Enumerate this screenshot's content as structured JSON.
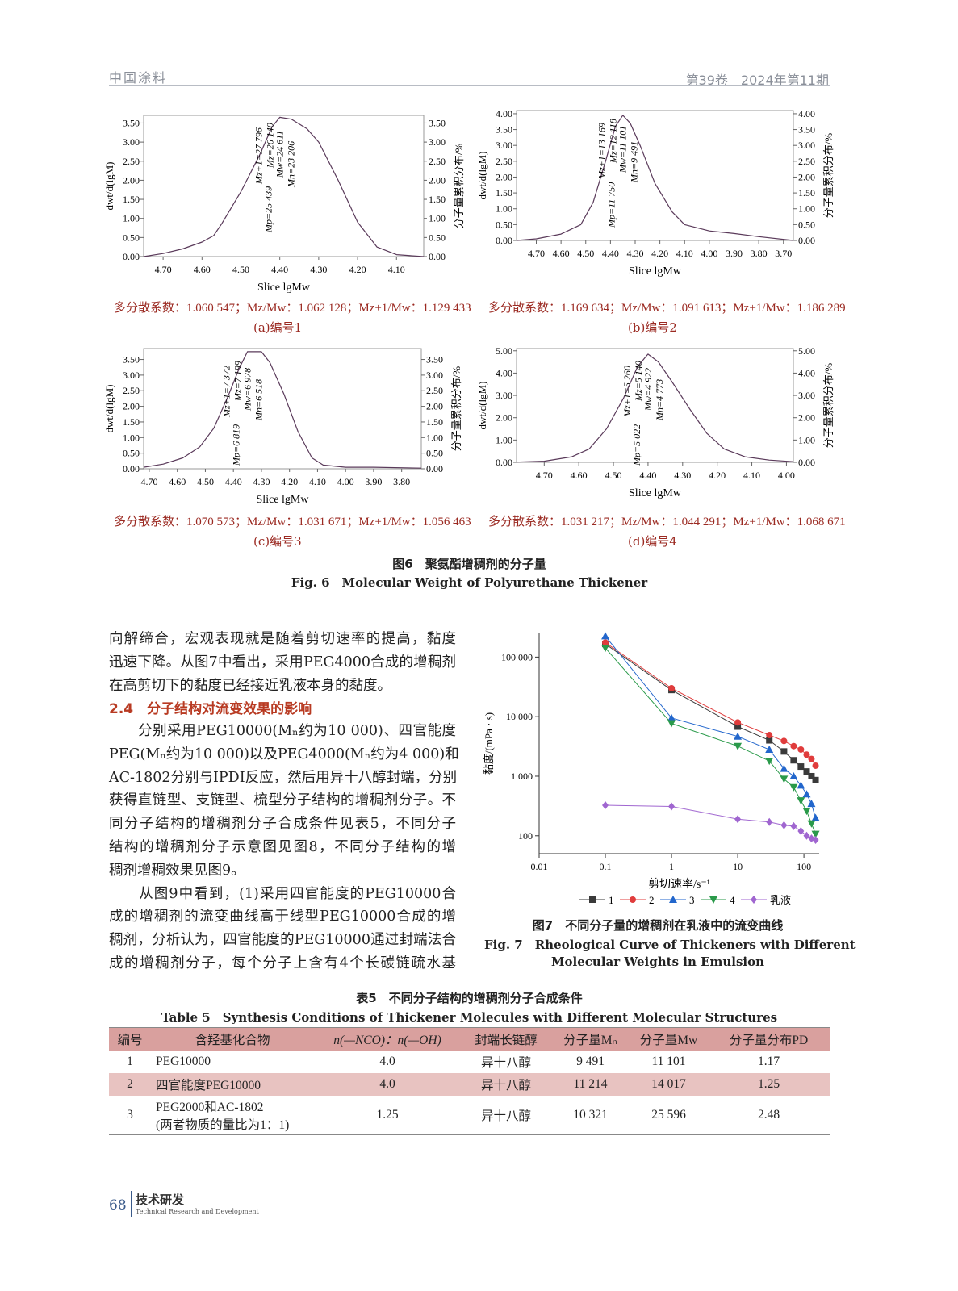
{
  "header": {
    "journal": "中国涂料",
    "issue": "第39卷　2024年第11期"
  },
  "fig6": {
    "caption_cn": "图6　聚氨酯增稠剂的分子量",
    "caption_en": "Fig. 6　Molecular Weight of Polyurethane Thickener",
    "ylabel_left": "dwt/d(lgM)",
    "ylabel_right": "分子量累积分布/%",
    "xlabel": "Slice lgMw"
  },
  "chart_data": [
    {
      "type": "line",
      "panel": "a",
      "sub_caption": "(a)编号1",
      "stats": "多分散系数：1.060 547；Mz/Mw：1.062 128；Mz+1/Mw：1.129 433",
      "xlim": [
        4.75,
        4.03
      ],
      "x_reversed": true,
      "ylim": [
        0,
        3.7
      ],
      "xticks": [
        "4.70",
        "4.60",
        "4.50",
        "4.40",
        "4.30",
        "4.20",
        "4.10"
      ],
      "yticks": [
        "0.00",
        "0.50",
        "1.00",
        "1.50",
        "2.00",
        "2.50",
        "3.00",
        "3.50"
      ],
      "annotations": [
        "Mz+1=27 796",
        "Mz=26 140",
        "Mw=24 611",
        "Mn=23 206",
        "Mp=25 439"
      ],
      "x": [
        4.75,
        4.7,
        4.65,
        4.6,
        4.57,
        4.55,
        4.5,
        4.45,
        4.42,
        4.4,
        4.37,
        4.33,
        4.3,
        4.25,
        4.2,
        4.15,
        4.1,
        4.03
      ],
      "y": [
        0,
        0.08,
        0.2,
        0.38,
        0.55,
        0.85,
        1.7,
        2.7,
        3.4,
        3.65,
        3.6,
        3.35,
        3.0,
        2.0,
        0.9,
        0.25,
        0.05,
        0
      ]
    },
    {
      "type": "line",
      "panel": "b",
      "sub_caption": "(b)编号2",
      "stats": "多分散系数：1.169 634；Mz/Mw：1.091 613；Mz+1/Mw：1.186 289",
      "xlim": [
        4.78,
        3.66
      ],
      "x_reversed": true,
      "ylim": [
        0,
        4.1
      ],
      "xticks": [
        "4.70",
        "4.60",
        "4.50",
        "4.40",
        "4.30",
        "4.20",
        "4.10",
        "4.00",
        "3.90",
        "3.80",
        "3.70"
      ],
      "yticks": [
        "0.00",
        "0.50",
        "1.00",
        "1.50",
        "2.00",
        "2.50",
        "3.00",
        "3.50",
        "4.00"
      ],
      "annotations": [
        "Mz+1=13 169",
        "Mz=12 118",
        "Mw=11 101",
        "Mn=9 491",
        "Mp=11 750"
      ],
      "x": [
        4.78,
        4.7,
        4.6,
        4.52,
        4.47,
        4.42,
        4.38,
        4.35,
        4.32,
        4.28,
        4.22,
        4.15,
        4.1,
        4.0,
        3.9,
        3.8,
        3.66
      ],
      "y": [
        0,
        0.05,
        0.2,
        0.5,
        1.2,
        2.5,
        3.6,
        3.95,
        3.7,
        3.0,
        1.8,
        0.9,
        0.5,
        0.3,
        0.22,
        0.12,
        0
      ]
    },
    {
      "type": "line",
      "panel": "c",
      "sub_caption": "(c)编号3",
      "stats": "多分散系数：1.070 573；Mz/Mw：1.031 671；Mz+1/Mw：1.056 463",
      "xlim": [
        4.72,
        3.73
      ],
      "x_reversed": true,
      "ylim": [
        0,
        3.85
      ],
      "xticks": [
        "4.70",
        "4.60",
        "4.50",
        "4.40",
        "4.30",
        "4.20",
        "4.10",
        "4.00",
        "3.90",
        "3.80"
      ],
      "yticks": [
        "0.00",
        "0.50",
        "1.00",
        "1.50",
        "2.00",
        "2.50",
        "3.00",
        "3.50"
      ],
      "annotations": [
        "Mz+1=7 372",
        "Mz=7 199",
        "Mw=6 978",
        "Mn=6 518",
        "Mp=6 819"
      ],
      "x": [
        4.72,
        4.65,
        4.58,
        4.52,
        4.47,
        4.42,
        4.38,
        4.35,
        4.3,
        4.27,
        4.22,
        4.17,
        4.12,
        4.08,
        4.0,
        3.9,
        3.73
      ],
      "y": [
        0.05,
        0.15,
        0.35,
        0.7,
        1.3,
        2.3,
        3.2,
        3.75,
        3.75,
        3.4,
        2.4,
        1.2,
        0.35,
        0.12,
        0.05,
        0.05,
        0.02
      ]
    },
    {
      "type": "line",
      "panel": "d",
      "sub_caption": "(d)编号4",
      "stats": "多分散系数：1.031 217；Mz/Mw：1.044 291；Mz+1/Mw：1.068 671",
      "xlim": [
        4.78,
        3.98
      ],
      "x_reversed": true,
      "ylim": [
        0,
        5.1
      ],
      "xticks": [
        "4.70",
        "4.60",
        "4.50",
        "4.40",
        "4.30",
        "4.20",
        "4.10",
        "4.00"
      ],
      "yticks": [
        "0.00",
        "1.00",
        "2.00",
        "3.00",
        "4.00",
        "5.00"
      ],
      "annotations": [
        "Mz+1=5 260",
        "Mz=5 140",
        "Mw=4 922",
        "Mn=4 773",
        "Mp=5 022"
      ],
      "x": [
        4.78,
        4.7,
        4.62,
        4.57,
        4.52,
        4.47,
        4.43,
        4.4,
        4.37,
        4.33,
        4.28,
        4.23,
        4.18,
        4.12,
        4.05,
        3.98
      ],
      "y": [
        0.01,
        0.05,
        0.25,
        0.6,
        1.5,
        2.9,
        4.3,
        4.85,
        4.5,
        3.6,
        2.4,
        1.3,
        0.6,
        0.25,
        0.1,
        0.03
      ]
    },
    {
      "type": "line",
      "panel": "fig7",
      "xscale": "log",
      "yscale": "log",
      "xlim": [
        0.01,
        170
      ],
      "ylim": [
        50,
        250000
      ],
      "xlabel": "剪切速率/s⁻¹",
      "ylabel": "黏度/(mPa · s)",
      "xticks": [
        "0.01",
        "0.1",
        "1",
        "10",
        "100"
      ],
      "yticks": [
        "100",
        "1 000",
        "10 000",
        "100 000"
      ],
      "legend_position": "bottom",
      "x": [
        0.1,
        1,
        10,
        30,
        50,
        70,
        90,
        110,
        130,
        150
      ],
      "series": [
        {
          "name": "1",
          "color": "#3a3a3a",
          "marker": "square",
          "values": [
            166000,
            28000,
            6800,
            4000,
            2600,
            1850,
            1450,
            1200,
            1000,
            860
          ]
        },
        {
          "name": "2",
          "color": "#e03c3c",
          "marker": "circle",
          "values": [
            175000,
            30000,
            8000,
            4900,
            3900,
            3200,
            2800,
            2300,
            1950,
            1500
          ]
        },
        {
          "name": "3",
          "color": "#2266cc",
          "marker": "triangle-up",
          "values": [
            225000,
            9500,
            4650,
            2800,
            1340,
            1000,
            700,
            500,
            345,
            200
          ]
        },
        {
          "name": "4",
          "color": "#2a9a4a",
          "marker": "triangle-down",
          "values": [
            142000,
            7700,
            3200,
            1800,
            900,
            650,
            390,
            260,
            160,
            107
          ]
        },
        {
          "name": "乳液",
          "color": "#a066d0",
          "marker": "diamond",
          "values": [
            325,
            310,
            190,
            170,
            150,
            145,
            120,
            100,
            90,
            85
          ]
        }
      ]
    }
  ],
  "fig7": {
    "caption_cn": "图7　不同分子量的增稠剂在乳液中的流变曲线",
    "caption_en_1": "Fig. 7　Rheological Curve of Thickeners with Different",
    "caption_en_2": "Molecular Weights in Emulsion"
  },
  "body": {
    "lines_a": [
      "向解缔合，宏观表现就是随着剪切速率的提高，黏度",
      "迅速下降。从图7中看出，采用PEG4000合成的增稠剂",
      "在高剪切下的黏度已经接近乳液本身的黏度。"
    ],
    "heading": "2.4　分子结构对流变效果的影响",
    "lines_b": [
      "　　分别采用PEG10000(Mₙ约为10 000)、四官能度",
      "PEG(Mₙ约为10 000)以及PEG4000(Mₙ约为4 000)和",
      "AC-1802分别与IPDI反应，然后用异十八醇封端，分别",
      "获得直链型、支链型、梳型分子结构的增稠剂分子。不",
      "同分子结构的增稠剂分子合成条件见表5，不同分子",
      "结构的增稠剂分子示意图见图8，不同分子结构的增",
      "稠剂增稠效果见图9。",
      "　　从图9中看到，(1)采用四官能度的PEG10000合",
      "成的增稠剂的流变曲线高于线型PEG10000合成的增",
      "稠剂，分析认为，四官能度的PEG10000通过封端法合",
      "成的增稠剂分子，每个分子上含有4个长碳链疏水基"
    ]
  },
  "table5": {
    "title_cn": "表5　不同分子结构的增稠剂分子合成条件",
    "title_en": "Table 5　Synthesis Conditions of Thickener Molecules with Different Molecular Structures",
    "headers": [
      "编号",
      "含羟基化合物",
      "n(—NCO)：n(—OH)",
      "封端长链醇",
      "分子量Mₙ",
      "分子量Mw",
      "分子量分布PD"
    ],
    "rows": [
      [
        "1",
        "PEG10000",
        "4.0",
        "异十八醇",
        "9 491",
        "11 101",
        "1.17"
      ],
      [
        "2",
        "四官能度PEG10000",
        "4.0",
        "异十八醇",
        "11 214",
        "14 017",
        "1.25"
      ],
      [
        "3",
        "PEG2000和AC-1802",
        "1.25",
        "异十八醇",
        "10 321",
        "25 596",
        "2.48"
      ]
    ],
    "row3_note": "(两者物质的量比为1：1)",
    "colors": {
      "header_bg": "#d9a09e",
      "alt_row_bg": "#e8c3c1"
    }
  },
  "footer": {
    "page": "68",
    "section_cn": "技术研发",
    "section_en": "Technical Research and Development"
  }
}
